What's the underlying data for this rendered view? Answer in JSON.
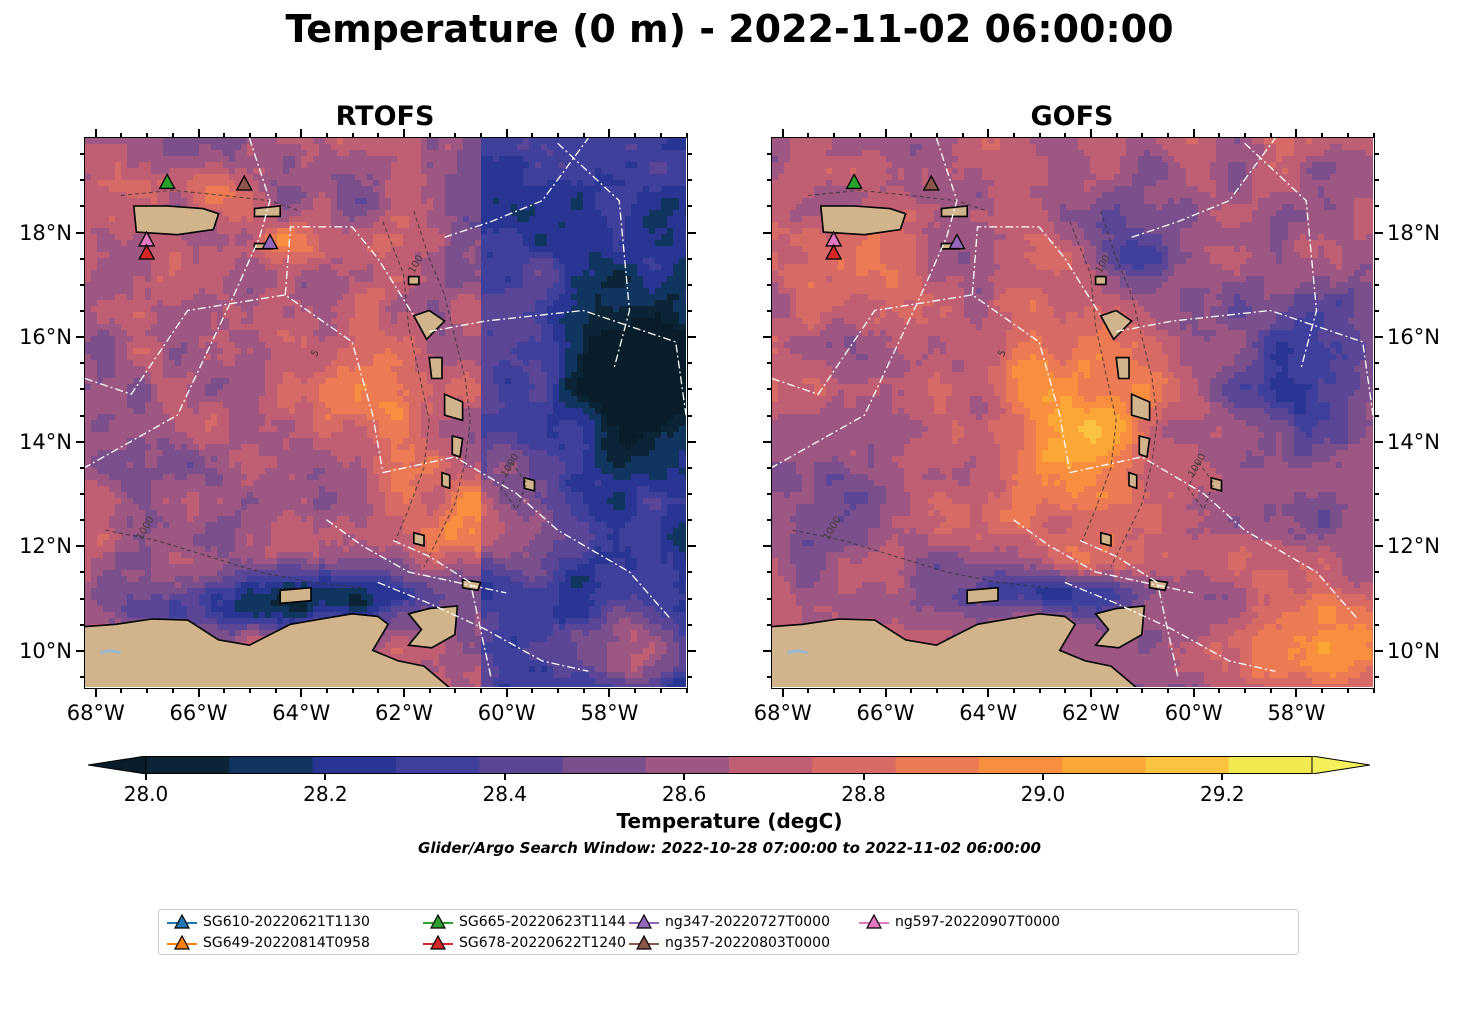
{
  "title": "Temperature (0 m) - 2022-11-02 06:00:00",
  "panels": [
    {
      "title": "RTOFS"
    },
    {
      "title": "GOFS"
    }
  ],
  "axes": {
    "x_ticks": [
      "68°W",
      "66°W",
      "64°W",
      "62°W",
      "60°W",
      "58°W"
    ],
    "y_ticks": [
      "18°N",
      "16°N",
      "14°N",
      "12°N",
      "10°N"
    ],
    "x_tick_values": [
      -68,
      -66,
      -64,
      -62,
      -60,
      -58
    ],
    "y_tick_values": [
      18,
      16,
      14,
      12,
      10
    ],
    "lon_range": [
      -68.2,
      -56.5
    ],
    "lat_range": [
      9.3,
      19.8
    ]
  },
  "colorbar": {
    "label": "Temperature (degC)",
    "ticks": [
      "28.0",
      "28.2",
      "28.4",
      "28.6",
      "28.8",
      "29.0",
      "29.2"
    ],
    "range": [
      28.0,
      29.3
    ],
    "step": 0.1,
    "colors": [
      "#0b2436",
      "#10355f",
      "#283593",
      "#3f3f9c",
      "#5b4596",
      "#7a4f8c",
      "#9e5682",
      "#c05f74",
      "#d86a66",
      "#ec7a52",
      "#f78f3e",
      "#fba637",
      "#fbc33f",
      "#f0e94f"
    ],
    "under_color": "#081c2a",
    "over_color": "#f3f05a"
  },
  "search_window": "Glider/Argo Search Window: 2022-10-28 07:00:00 to 2022-11-02 06:00:00",
  "legend": [
    {
      "label": "SG610-20220621T1130",
      "color": "#1f77b4"
    },
    {
      "label": "SG649-20220814T0958",
      "color": "#ff7f0e"
    },
    {
      "label": "SG665-20220623T1144",
      "color": "#2ca02c"
    },
    {
      "label": "SG678-20220622T1240",
      "color": "#d62728"
    },
    {
      "label": "ng347-20220727T0000",
      "color": "#9467bd"
    },
    {
      "label": "ng357-20220803T0000",
      "color": "#8c564b"
    },
    {
      "label": "ng597-20220907T0000",
      "color": "#e377c2"
    }
  ],
  "markers": [
    {
      "id": "SG665-20220623T1144",
      "color": "#2ca02c",
      "lon": -66.6,
      "lat": 18.95
    },
    {
      "id": "ng357-20220803T0000",
      "color": "#8c564b",
      "lon": -65.1,
      "lat": 18.92
    },
    {
      "id": "ng347-20220727T0000",
      "color": "#9467bd",
      "lon": -64.6,
      "lat": 17.8
    },
    {
      "id": "ng597-20220907T0000",
      "color": "#e377c2",
      "lon": -67.0,
      "lat": 17.85
    },
    {
      "id": "SG678-20220622T1240",
      "color": "#d62728",
      "lon": -67.0,
      "lat": 17.6
    }
  ],
  "contour_labels": [
    "1000",
    "100",
    "5"
  ]
}
